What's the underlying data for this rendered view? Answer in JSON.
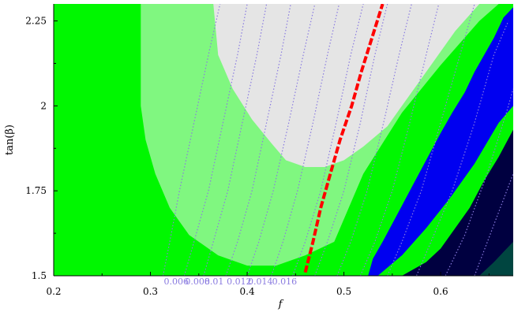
{
  "chart_data": {
    "type": "heatmap",
    "title": "",
    "xlabel": "f",
    "ylabel": "tan(β)",
    "xlim": [
      0.2,
      0.675
    ],
    "ylim": [
      1.5,
      2.3
    ],
    "x_ticks": [
      {
        "value": 0.2,
        "label": "0.2"
      },
      {
        "value": 0.3,
        "label": "0.3"
      },
      {
        "value": 0.4,
        "label": "0.4"
      },
      {
        "value": 0.5,
        "label": "0.5"
      },
      {
        "value": 0.6,
        "label": "0.6"
      }
    ],
    "y_ticks": [
      {
        "value": 1.5,
        "label": "1.5"
      },
      {
        "value": 1.75,
        "label": "1.75"
      },
      {
        "value": 2.0,
        "label": "2"
      },
      {
        "value": 2.25,
        "label": "2.25"
      }
    ],
    "colors": {
      "light_gray": "#e5e5e5",
      "light_green": "#80f780",
      "green": "#00f700",
      "blue": "#0000f0",
      "navy": "#000040",
      "teal": "#004540",
      "red_curve": "#ff0000",
      "contour": "#8a7be0"
    },
    "regions": [
      {
        "color_key": "green",
        "boundary": [
          [
            0.2,
            1.5
          ],
          [
            0.675,
            1.5
          ],
          [
            0.675,
            2.3
          ],
          [
            0.2,
            2.3
          ]
        ]
      },
      {
        "color_key": "light_green",
        "boundary": [
          [
            0.29,
            2.3
          ],
          [
            0.29,
            2.0
          ],
          [
            0.295,
            1.9
          ],
          [
            0.305,
            1.8
          ],
          [
            0.32,
            1.7
          ],
          [
            0.34,
            1.62
          ],
          [
            0.37,
            1.56
          ],
          [
            0.4,
            1.53
          ],
          [
            0.43,
            1.53
          ],
          [
            0.46,
            1.56
          ],
          [
            0.49,
            1.6
          ],
          [
            0.52,
            1.65
          ],
          [
            0.55,
            1.72
          ],
          [
            0.58,
            1.8
          ],
          [
            0.61,
            1.88
          ],
          [
            0.64,
            1.96
          ],
          [
            0.665,
            2.05
          ],
          [
            0.675,
            2.1
          ],
          [
            0.675,
            2.3
          ]
        ]
      },
      {
        "color_key": "light_gray",
        "boundary": [
          [
            0.365,
            2.3
          ],
          [
            0.37,
            2.15
          ],
          [
            0.385,
            2.05
          ],
          [
            0.405,
            1.96
          ],
          [
            0.425,
            1.89
          ],
          [
            0.44,
            1.84
          ],
          [
            0.46,
            1.82
          ],
          [
            0.48,
            1.82
          ],
          [
            0.5,
            1.84
          ],
          [
            0.52,
            1.88
          ],
          [
            0.545,
            1.94
          ],
          [
            0.565,
            2.02
          ],
          [
            0.59,
            2.12
          ],
          [
            0.615,
            2.22
          ],
          [
            0.64,
            2.3
          ]
        ]
      },
      {
        "color_key": "green",
        "boundary": [
          [
            0.5,
            1.5
          ],
          [
            0.53,
            1.55
          ],
          [
            0.56,
            1.63
          ],
          [
            0.6,
            1.73
          ],
          [
            0.63,
            1.82
          ],
          [
            0.66,
            1.94
          ],
          [
            0.675,
            2.0
          ],
          [
            0.675,
            2.3
          ],
          [
            0.66,
            2.3
          ],
          [
            0.64,
            2.25
          ],
          [
            0.6,
            2.12
          ],
          [
            0.56,
            1.98
          ],
          [
            0.52,
            1.8
          ],
          [
            0.49,
            1.6
          ],
          [
            0.48,
            1.5
          ]
        ]
      },
      {
        "color_key": "blue",
        "boundary": [
          [
            0.535,
            1.5
          ],
          [
            0.56,
            1.56
          ],
          [
            0.585,
            1.64
          ],
          [
            0.61,
            1.73
          ],
          [
            0.635,
            1.83
          ],
          [
            0.66,
            1.95
          ],
          [
            0.675,
            2.0
          ],
          [
            0.675,
            2.29
          ],
          [
            0.665,
            2.26
          ],
          [
            0.655,
            2.2
          ],
          [
            0.645,
            2.15
          ],
          [
            0.635,
            2.1
          ],
          [
            0.625,
            2.04
          ],
          [
            0.612,
            1.98
          ],
          [
            0.6,
            1.92
          ],
          [
            0.585,
            1.84
          ],
          [
            0.57,
            1.76
          ],
          [
            0.555,
            1.68
          ],
          [
            0.54,
            1.6
          ],
          [
            0.53,
            1.55
          ],
          [
            0.525,
            1.5
          ]
        ]
      },
      {
        "color_key": "navy",
        "boundary": [
          [
            0.56,
            1.5
          ],
          [
            0.675,
            1.5
          ],
          [
            0.675,
            1.93
          ],
          [
            0.66,
            1.85
          ],
          [
            0.645,
            1.78
          ],
          [
            0.63,
            1.7
          ],
          [
            0.615,
            1.64
          ],
          [
            0.6,
            1.58
          ],
          [
            0.585,
            1.54
          ]
        ]
      },
      {
        "color_key": "teal",
        "boundary": [
          [
            0.64,
            1.5
          ],
          [
            0.675,
            1.5
          ],
          [
            0.675,
            1.6
          ],
          [
            0.665,
            1.57
          ],
          [
            0.655,
            1.54
          ]
        ]
      }
    ],
    "contour_lines": [
      {
        "label": "0.006",
        "points": [
          [
            0.313,
            1.5
          ],
          [
            0.32,
            1.6
          ],
          [
            0.33,
            1.75
          ],
          [
            0.345,
            1.95
          ],
          [
            0.36,
            2.15
          ],
          [
            0.372,
            2.3
          ]
        ]
      },
      {
        "label": "0.008",
        "points": [
          [
            0.335,
            1.5
          ],
          [
            0.345,
            1.6
          ],
          [
            0.36,
            1.75
          ],
          [
            0.375,
            1.95
          ],
          [
            0.39,
            2.15
          ],
          [
            0.4,
            2.3
          ]
        ]
      },
      {
        "label": "0.01",
        "points": [
          [
            0.355,
            1.5
          ],
          [
            0.365,
            1.6
          ],
          [
            0.38,
            1.75
          ],
          [
            0.395,
            1.95
          ],
          [
            0.41,
            2.15
          ],
          [
            0.42,
            2.3
          ]
        ]
      },
      {
        "label": "0.012",
        "points": [
          [
            0.378,
            1.5
          ],
          [
            0.39,
            1.6
          ],
          [
            0.405,
            1.75
          ],
          [
            0.42,
            1.95
          ],
          [
            0.435,
            2.15
          ],
          [
            0.445,
            2.3
          ]
        ]
      },
      {
        "label": "0.014",
        "points": [
          [
            0.4,
            1.5
          ],
          [
            0.412,
            1.6
          ],
          [
            0.427,
            1.75
          ],
          [
            0.443,
            1.95
          ],
          [
            0.458,
            2.15
          ],
          [
            0.47,
            2.3
          ]
        ]
      },
      {
        "label": "0.016",
        "points": [
          [
            0.425,
            1.5
          ],
          [
            0.437,
            1.6
          ],
          [
            0.452,
            1.75
          ],
          [
            0.468,
            1.95
          ],
          [
            0.483,
            2.15
          ],
          [
            0.495,
            2.3
          ]
        ]
      },
      {
        "label": "",
        "points": [
          [
            0.447,
            1.5
          ],
          [
            0.46,
            1.6
          ],
          [
            0.476,
            1.75
          ],
          [
            0.492,
            1.95
          ],
          [
            0.507,
            2.15
          ],
          [
            0.52,
            2.3
          ]
        ]
      },
      {
        "label": "",
        "points": [
          [
            0.47,
            1.5
          ],
          [
            0.483,
            1.6
          ],
          [
            0.5,
            1.75
          ],
          [
            0.517,
            1.95
          ],
          [
            0.532,
            2.15
          ],
          [
            0.545,
            2.3
          ]
        ]
      },
      {
        "label": "",
        "points": [
          [
            0.493,
            1.5
          ],
          [
            0.507,
            1.6
          ],
          [
            0.524,
            1.75
          ],
          [
            0.541,
            1.95
          ],
          [
            0.557,
            2.15
          ],
          [
            0.57,
            2.3
          ]
        ]
      },
      {
        "label": "",
        "points": [
          [
            0.517,
            1.5
          ],
          [
            0.532,
            1.6
          ],
          [
            0.55,
            1.75
          ],
          [
            0.568,
            1.95
          ],
          [
            0.585,
            2.15
          ],
          [
            0.598,
            2.3
          ]
        ]
      },
      {
        "label": "",
        "points": [
          [
            0.545,
            1.5
          ],
          [
            0.56,
            1.6
          ],
          [
            0.58,
            1.75
          ],
          [
            0.6,
            1.95
          ],
          [
            0.62,
            2.15
          ],
          [
            0.635,
            2.3
          ]
        ]
      },
      {
        "label": "",
        "points": [
          [
            0.575,
            1.5
          ],
          [
            0.59,
            1.6
          ],
          [
            0.612,
            1.75
          ],
          [
            0.635,
            1.95
          ],
          [
            0.655,
            2.15
          ],
          [
            0.67,
            2.25
          ]
        ]
      },
      {
        "label": "",
        "points": [
          [
            0.605,
            1.5
          ],
          [
            0.625,
            1.62
          ],
          [
            0.648,
            1.8
          ],
          [
            0.668,
            1.98
          ],
          [
            0.675,
            2.05
          ]
        ]
      },
      {
        "label": "",
        "points": [
          [
            0.635,
            1.5
          ],
          [
            0.655,
            1.65
          ],
          [
            0.675,
            1.8
          ]
        ]
      }
    ],
    "red_curve": {
      "points": [
        [
          0.46,
          1.51
        ],
        [
          0.468,
          1.6
        ],
        [
          0.476,
          1.7
        ],
        [
          0.486,
          1.8
        ],
        [
          0.496,
          1.9
        ],
        [
          0.508,
          2.0
        ],
        [
          0.518,
          2.1
        ],
        [
          0.529,
          2.2
        ],
        [
          0.54,
          2.3
        ]
      ]
    }
  }
}
